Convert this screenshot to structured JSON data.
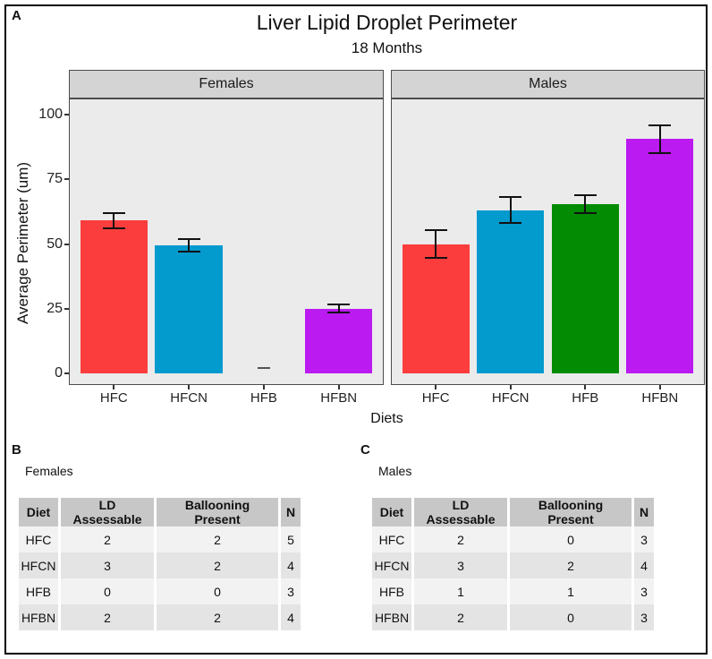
{
  "figure": {
    "panel_a_label": "A",
    "panel_b_label": "B",
    "panel_c_label": "C"
  },
  "chart_data": {
    "type": "bar",
    "title": "Liver Lipid Droplet Perimeter",
    "subtitle": "18 Months",
    "xlabel": "Diets",
    "ylabel": "Average Perimeter (um)",
    "ylim": [
      0,
      100
    ],
    "yticks": [
      0,
      25,
      50,
      75,
      100
    ],
    "grid": false,
    "legend": "none",
    "categories": [
      "HFC",
      "HFCN",
      "HFB",
      "HFBN"
    ],
    "colors": [
      "#FC3D3D",
      "#039ACE",
      "#048B04",
      "#BB1AF0"
    ],
    "facets": [
      {
        "label": "Females",
        "values": [
          59,
          49.5,
          0,
          25
        ],
        "errors": [
          3,
          2.5,
          0,
          1.5
        ]
      },
      {
        "label": "Males",
        "values": [
          50,
          63,
          65.5,
          90.5
        ],
        "errors": [
          5.5,
          5,
          3.5,
          5.5
        ]
      }
    ]
  },
  "tables": {
    "headers": [
      "Diet",
      "LD Assessable",
      "Ballooning Present",
      "N"
    ],
    "females": {
      "caption": "Females",
      "rows": [
        [
          "HFC",
          "2",
          "2",
          "5"
        ],
        [
          "HFCN",
          "3",
          "2",
          "4"
        ],
        [
          "HFB",
          "0",
          "0",
          "3"
        ],
        [
          "HFBN",
          "2",
          "2",
          "4"
        ]
      ]
    },
    "males": {
      "caption": "Males",
      "rows": [
        [
          "HFC",
          "2",
          "0",
          "3"
        ],
        [
          "HFCN",
          "3",
          "2",
          "4"
        ],
        [
          "HFB",
          "1",
          "1",
          "3"
        ],
        [
          "HFBN",
          "2",
          "0",
          "3"
        ]
      ]
    }
  }
}
